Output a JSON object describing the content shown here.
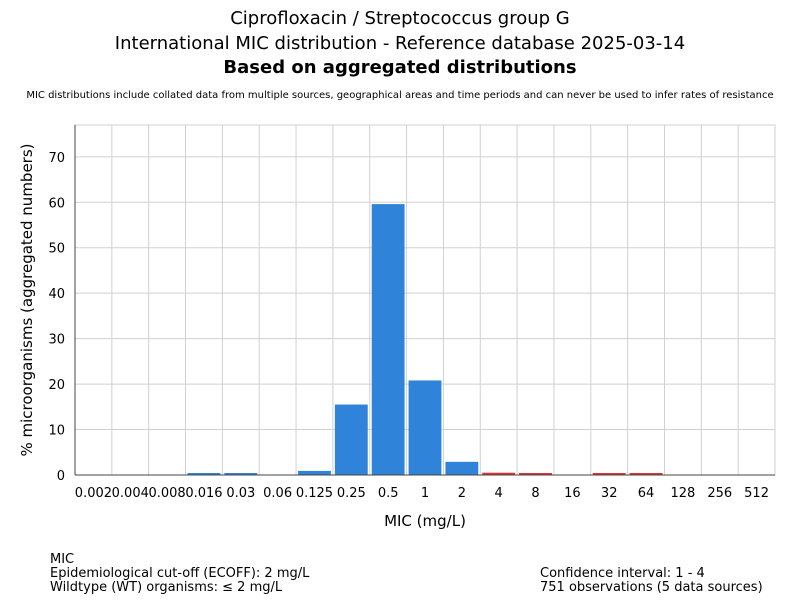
{
  "chart_data": {
    "type": "bar",
    "title": "Ciprofloxacin / Streptococcus group G",
    "subtitle": "International MIC distribution - Reference database 2025-03-14",
    "subtitle2": "Based on aggregated distributions",
    "note": "MIC distributions include collated data from multiple sources, geographical areas and time periods and can never be used to infer rates of resistance",
    "xlabel": "MIC (mg/L)",
    "ylabel": "% microorganisms (aggregated numbers)",
    "ylim": [
      0,
      77
    ],
    "yticks": [
      0,
      10,
      20,
      30,
      40,
      50,
      60,
      70
    ],
    "grid": true,
    "categories": [
      "0.002",
      "0.004",
      "0.008",
      "0.016",
      "0.03",
      "0.06",
      "0.125",
      "0.25",
      "0.5",
      "1",
      "2",
      "4",
      "8",
      "16",
      "32",
      "64",
      "128",
      "256",
      "512"
    ],
    "values": [
      0,
      0,
      0,
      0.3,
      0.3,
      0,
      0.9,
      15.5,
      59.6,
      20.8,
      2.9,
      0.5,
      0.3,
      0,
      0.3,
      0.3,
      0,
      0,
      0
    ],
    "ecoff": 2,
    "colors": {
      "wildtype": "#2f84d9",
      "non_wildtype": "#e03030"
    }
  },
  "footer": {
    "left": [
      "MIC",
      "Epidemiological cut-off (ECOFF): 2 mg/L",
      "Wildtype (WT) organisms: ≤ 2 mg/L"
    ],
    "right": [
      "Confidence interval: 1 - 4",
      "751 observations (5 data sources)"
    ]
  }
}
